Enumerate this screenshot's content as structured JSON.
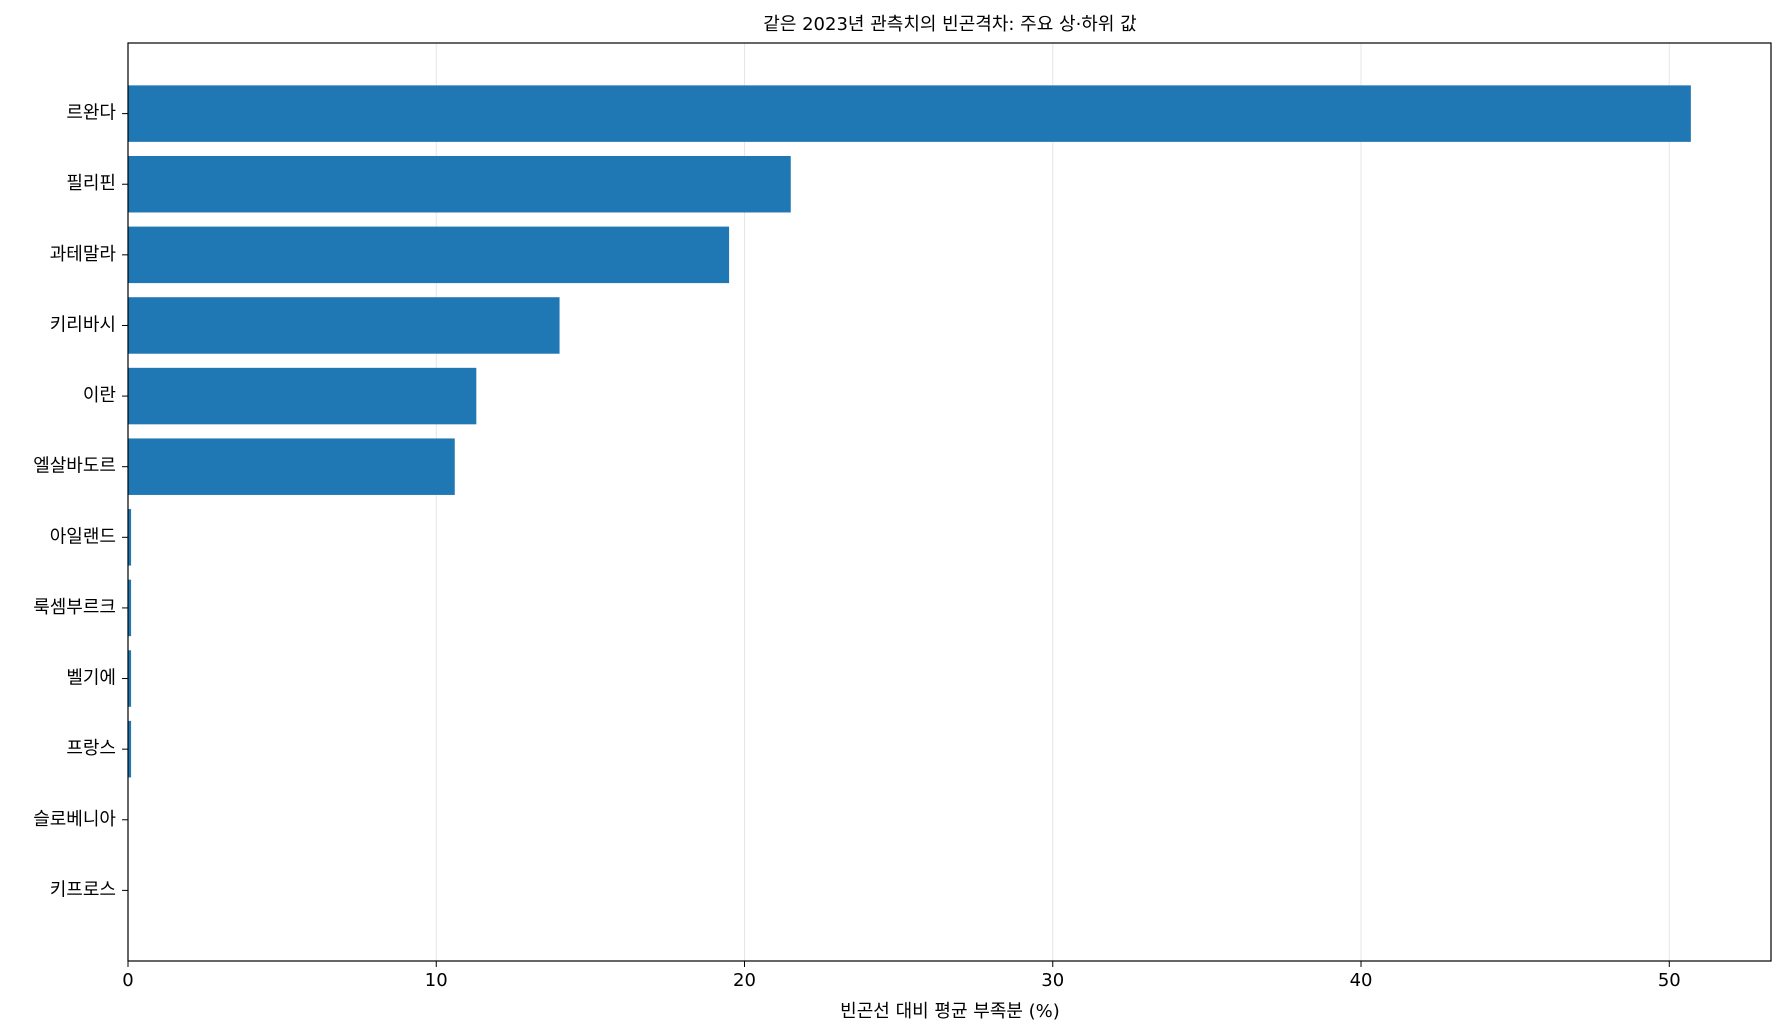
{
  "chart_data": {
    "type": "barh",
    "title": "같은 2023년 관측치의 빈곤격차: 주요 상·하위 값",
    "x_label": "빈곤선 대비 평균 부족분 (%)",
    "categories": [
      "르완다",
      "필리핀",
      "과테말라",
      "키리바시",
      "이란",
      "엘살바도르",
      "아일랜드",
      "룩셈부르크",
      "벨기에",
      "프랑스",
      "슬로베니아",
      "키프로스"
    ],
    "values": [
      50.7,
      21.5,
      19.5,
      14.0,
      11.3,
      10.6,
      0.1,
      0.1,
      0.1,
      0.1,
      0,
      0
    ],
    "color": "#1f77b4",
    "xlim": [
      0,
      53.3
    ],
    "xticks": [
      0,
      10,
      20,
      30,
      40,
      50
    ],
    "grid": true
  }
}
